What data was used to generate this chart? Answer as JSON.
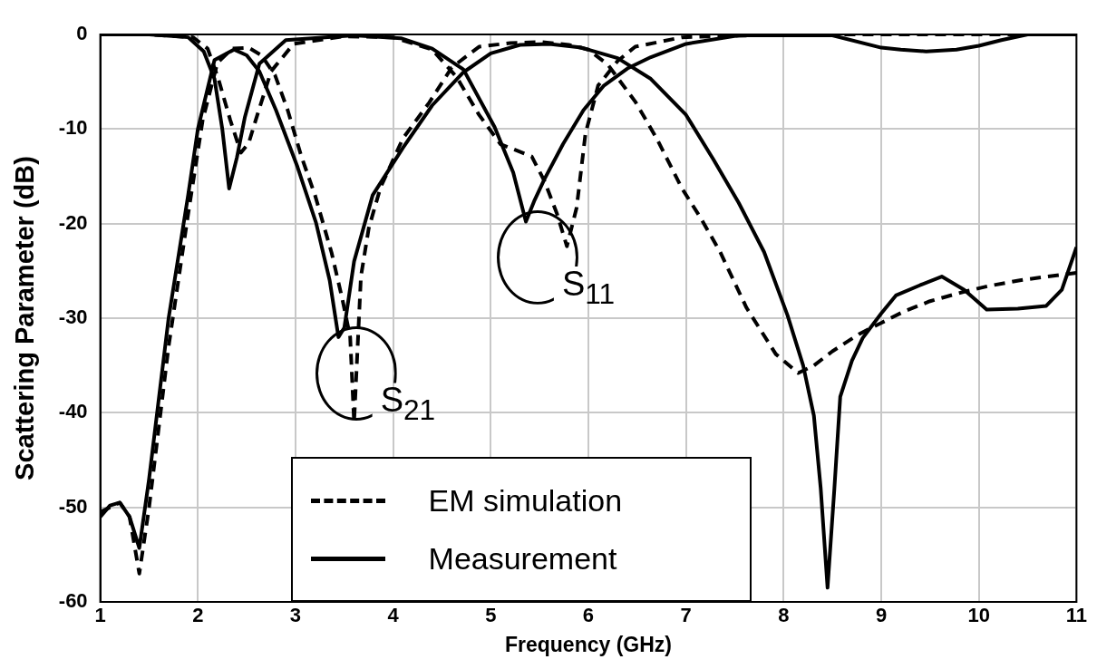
{
  "chart_data": {
    "type": "line",
    "xlabel": "Frequency (GHz)",
    "ylabel": "Scattering Parameter (dB)",
    "xlim": [
      1,
      11
    ],
    "xticks": [
      1,
      2,
      3,
      4,
      5,
      6,
      7,
      8,
      9,
      10,
      11
    ],
    "ylim": [
      -60,
      0
    ],
    "yticks": [
      -60,
      -50,
      -40,
      -30,
      -20,
      -10,
      0
    ],
    "grid": true,
    "legend": "bottom",
    "marker": "none",
    "series": [
      {
        "name": "EM simulation",
        "color": "#000000",
        "line_style": "dashed",
        "x": [
          1,
          1.1,
          1.2,
          1.3,
          1.4,
          1.5,
          1.7,
          1.9,
          2.05,
          2.2,
          2.35,
          2.52,
          2.65,
          2.79,
          2.92,
          3.06,
          3.2,
          3.37,
          3.48,
          3.56,
          3.6,
          3.67,
          3.75,
          3.87,
          4.1,
          4.37,
          4.6,
          4.88,
          5.2,
          5.52,
          5.8,
          6,
          6.2,
          6.48,
          6.7,
          6.96,
          7.15,
          7.35,
          7.62,
          7.92,
          8.15,
          8.31,
          8.5,
          8.77,
          9.0,
          9.23,
          9.5,
          9.85,
          10.1,
          10.42,
          10.7,
          11
        ],
        "values": [
          -50.5,
          -50,
          -49.5,
          -51,
          -57,
          -50,
          -33,
          -19,
          -9,
          -3,
          -1.5,
          -1.4,
          -2.2,
          -4.3,
          -8,
          -12.9,
          -17,
          -23.1,
          -28,
          -32,
          -41,
          -25.6,
          -20.5,
          -16.2,
          -11,
          -7.2,
          -3.5,
          -1.3,
          -0.9,
          -0.8,
          -1.1,
          -1.6,
          -3.2,
          -7.1,
          -11,
          -16.3,
          -19.4,
          -23,
          -28.9,
          -33.8,
          -35.8,
          -35,
          -33.5,
          -31.7,
          -30.5,
          -29.3,
          -28.2,
          -27.2,
          -26.6,
          -26,
          -25.6,
          -25.2
        ]
      },
      {
        "name": "Measurement",
        "color": "#000000",
        "line_style": "solid",
        "x": [
          1,
          1.1,
          1.2,
          1.3,
          1.4,
          1.5,
          1.7,
          1.9,
          2.0,
          2.17,
          2.37,
          2.5,
          2.63,
          2.8,
          3.02,
          3.21,
          3.35,
          3.44,
          3.5,
          3.6,
          3.79,
          4.1,
          4.4,
          4.72,
          5.0,
          5.3,
          5.6,
          5.93,
          6.3,
          6.64,
          7.0,
          7.28,
          7.54,
          7.8,
          8.04,
          8.2,
          8.31,
          8.38,
          8.45,
          8.52,
          8.58,
          8.7,
          8.81,
          9.0,
          9.15,
          9.4,
          9.62,
          9.85,
          10.08,
          10.4,
          10.69,
          10.85,
          11
        ],
        "values": [
          -51,
          -49.8,
          -49.5,
          -51,
          -54.3,
          -47,
          -30,
          -17,
          -10,
          -2.7,
          -1.6,
          -2.2,
          -3.9,
          -8,
          -14,
          -19.9,
          -26,
          -32,
          -31,
          -24,
          -17,
          -12,
          -7.5,
          -4,
          -2,
          -1.1,
          -1,
          -1.4,
          -2.5,
          -4.7,
          -8.5,
          -13.2,
          -17.8,
          -23,
          -29.7,
          -35,
          -40.3,
          -48,
          -58.5,
          -48,
          -38.3,
          -34.5,
          -32.1,
          -29.5,
          -27.6,
          -26.5,
          -25.6,
          -27,
          -29.1,
          -29,
          -28.7,
          -27,
          -22.5
        ]
      },
      {
        "color": "#000000",
        "line_style": "solid",
        "x": [
          1,
          1.5,
          1.9,
          2.06,
          2.17,
          2.25,
          2.32,
          2.4,
          2.48,
          2.63,
          2.9,
          3.6,
          4.08,
          4.4,
          4.72,
          5.04,
          5.23,
          5.36,
          5.45,
          5.55,
          5.74,
          5.95,
          6.16,
          6.4,
          6.64,
          7.0,
          7.54,
          8.5,
          9.0,
          9.2,
          9.46,
          9.77,
          10.0,
          10.23,
          10.5,
          11
        ],
        "values": [
          0,
          0,
          -0.3,
          -1.8,
          -4.7,
          -10,
          -16.3,
          -13,
          -8.8,
          -3.1,
          -0.6,
          -0.1,
          -0.4,
          -1.5,
          -3.7,
          -9.8,
          -14.6,
          -19.8,
          -17.5,
          -15.3,
          -11.6,
          -8,
          -5.4,
          -3.6,
          -2.4,
          -1,
          -0.1,
          -0.1,
          -1.4,
          -1.6,
          -1.8,
          -1.6,
          -1.2,
          -0.6,
          0,
          0
        ]
      },
      {
        "color": "#000000",
        "line_style": "dashed",
        "x": [
          1,
          1.5,
          1.95,
          2.1,
          2.21,
          2.33,
          2.44,
          2.52,
          2.6,
          2.75,
          2.98,
          3.5,
          4.0,
          4.4,
          4.65,
          4.88,
          5.1,
          5.42,
          5.55,
          5.68,
          5.78,
          5.88,
          5.97,
          6.1,
          6.3,
          6.48,
          6.96,
          8,
          9,
          10,
          11
        ],
        "values": [
          0,
          0,
          -0.3,
          -1.5,
          -4.7,
          -9,
          -12.5,
          -11.5,
          -8.8,
          -3.9,
          -1,
          -0.2,
          -0.3,
          -1.6,
          -4.5,
          -8.5,
          -11.6,
          -12.9,
          -15.5,
          -19,
          -22.4,
          -18.3,
          -10.5,
          -5.4,
          -2.8,
          -1.3,
          -0.3,
          0,
          0,
          0,
          0
        ]
      }
    ],
    "annotations": [
      "S$_{21}$",
      "S$_{11}$"
    ]
  }
}
